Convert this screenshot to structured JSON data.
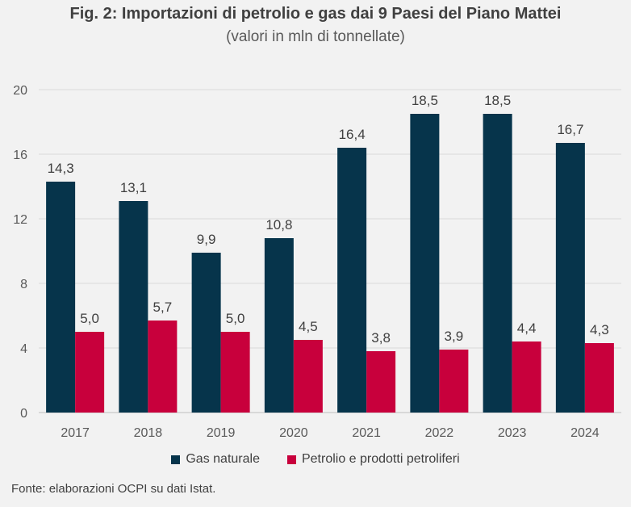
{
  "chart_data": {
    "type": "bar",
    "title": "Fig. 2: Importazioni di petrolio e gas dai 9 Paesi del Piano Mattei",
    "subtitle": "(valori in mln di tonnellate)",
    "categories": [
      "2017",
      "2018",
      "2019",
      "2020",
      "2021",
      "2022",
      "2023",
      "2024"
    ],
    "series": [
      {
        "name": "Gas naturale",
        "color": "#06344b",
        "values": [
          14.3,
          13.1,
          9.9,
          10.8,
          16.4,
          18.5,
          18.5,
          16.7
        ],
        "labels": [
          "14,3",
          "13,1",
          "9,9",
          "10,8",
          "16,4",
          "18,5",
          "18,5",
          "16,7"
        ]
      },
      {
        "name": "Petrolio e prodotti petroliferi",
        "color": "#c8003c",
        "values": [
          5.0,
          5.7,
          5.0,
          4.5,
          3.8,
          3.9,
          4.4,
          4.3
        ],
        "labels": [
          "5,0",
          "5,7",
          "5,0",
          "4,5",
          "3,8",
          "3,9",
          "4,4",
          "4,3"
        ]
      }
    ],
    "yticks": [
      "0",
      "4",
      "8",
      "12",
      "16",
      "20"
    ],
    "ylim": [
      0,
      20
    ],
    "grid": true,
    "legend_position": "bottom"
  },
  "source": "Fonte: elaborazioni OCPI su dati Istat."
}
